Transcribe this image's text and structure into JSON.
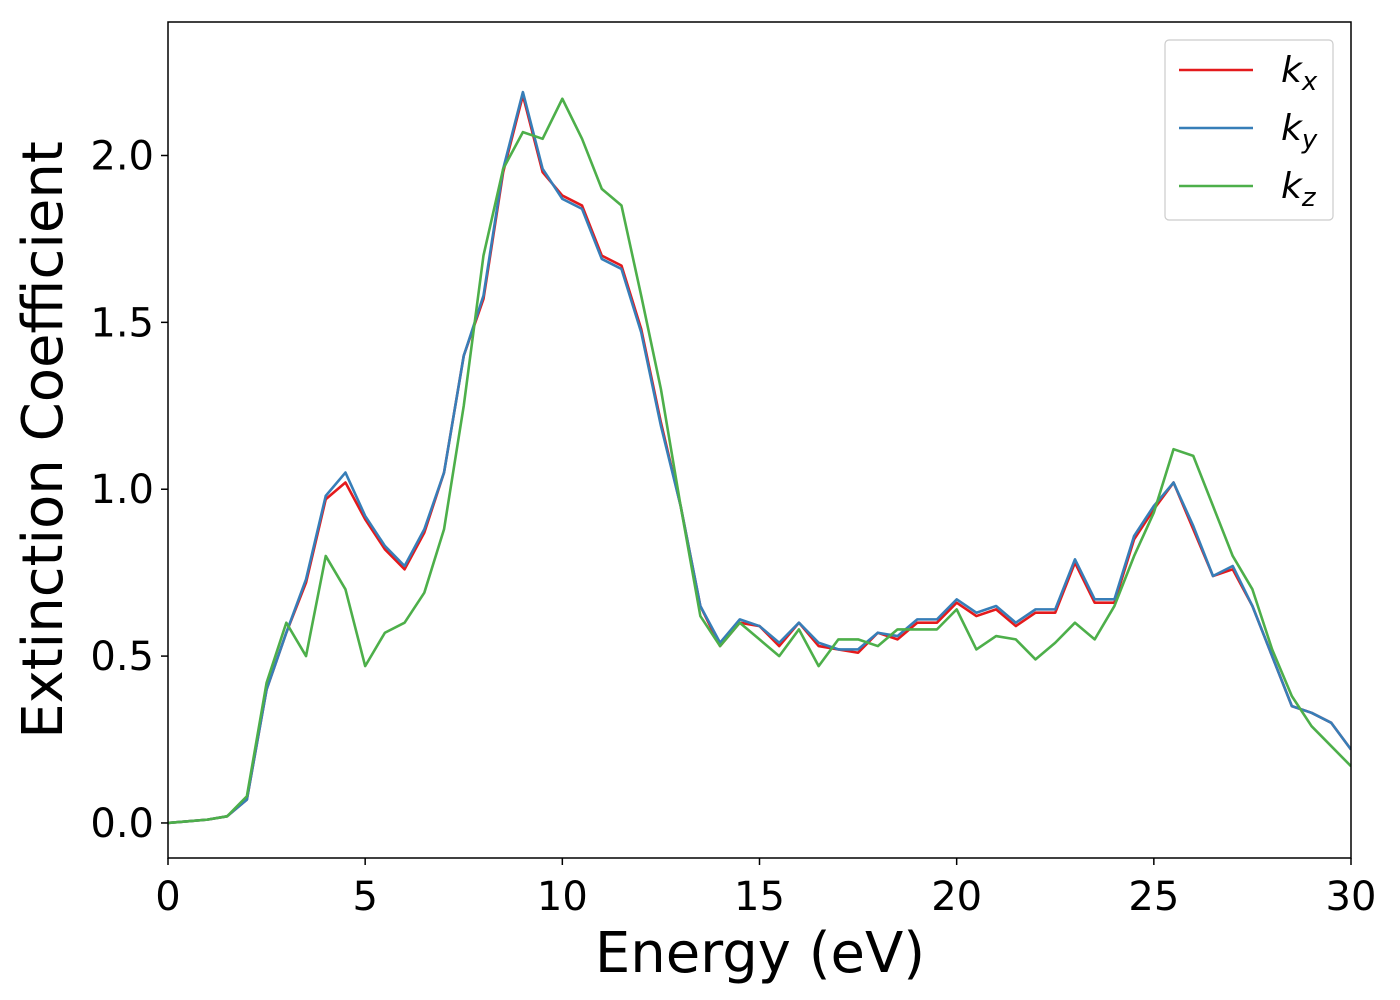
{
  "chart_data": {
    "type": "line",
    "xlabel": "Energy (eV)",
    "ylabel": "Extinction Coefficient",
    "x": [
      0,
      0.5,
      1,
      1.5,
      2,
      2.5,
      3,
      3.5,
      4,
      4.5,
      5,
      5.5,
      6,
      6.5,
      7,
      7.5,
      8,
      8.5,
      9,
      9.5,
      10,
      10.5,
      11,
      11.5,
      12,
      12.5,
      13,
      13.5,
      14,
      14.5,
      15,
      15.5,
      16,
      16.5,
      17,
      17.5,
      18,
      18.5,
      19,
      19.5,
      20,
      20.5,
      21,
      21.5,
      22,
      22.5,
      23,
      23.5,
      24,
      24.5,
      25,
      25.5,
      26,
      26.5,
      27,
      27.5,
      28,
      28.5,
      29,
      29.5,
      30
    ],
    "series": [
      {
        "name": "kx",
        "color": "#e41a1c",
        "values": [
          0,
          0.005,
          0.01,
          0.02,
          0.07,
          0.4,
          0.57,
          0.72,
          0.97,
          1.02,
          0.91,
          0.82,
          0.76,
          0.87,
          1.05,
          1.4,
          1.57,
          1.95,
          2.18,
          1.95,
          1.88,
          1.85,
          1.7,
          1.67,
          1.48,
          1.2,
          0.95,
          0.65,
          0.53,
          0.6,
          0.59,
          0.53,
          0.6,
          0.53,
          0.52,
          0.51,
          0.57,
          0.55,
          0.6,
          0.6,
          0.66,
          0.62,
          0.64,
          0.59,
          0.63,
          0.63,
          0.78,
          0.66,
          0.66,
          0.85,
          0.94,
          1.02,
          0.88,
          0.74,
          0.76,
          0.65,
          0.5,
          0.35,
          0.33,
          0.3,
          0.22
        ]
      },
      {
        "name": "ky",
        "color": "#377eb8",
        "values": [
          0,
          0.005,
          0.01,
          0.02,
          0.07,
          0.4,
          0.57,
          0.73,
          0.98,
          1.05,
          0.92,
          0.83,
          0.77,
          0.88,
          1.05,
          1.4,
          1.58,
          1.96,
          2.19,
          1.96,
          1.87,
          1.84,
          1.69,
          1.66,
          1.47,
          1.19,
          0.95,
          0.65,
          0.54,
          0.61,
          0.59,
          0.54,
          0.6,
          0.54,
          0.52,
          0.52,
          0.57,
          0.56,
          0.61,
          0.61,
          0.67,
          0.63,
          0.65,
          0.6,
          0.64,
          0.64,
          0.79,
          0.67,
          0.67,
          0.86,
          0.95,
          1.02,
          0.89,
          0.74,
          0.77,
          0.65,
          0.5,
          0.35,
          0.33,
          0.3,
          0.22
        ]
      },
      {
        "name": "kz",
        "color": "#4daf4a",
        "values": [
          0,
          0.005,
          0.01,
          0.02,
          0.08,
          0.42,
          0.6,
          0.5,
          0.8,
          0.7,
          0.47,
          0.57,
          0.6,
          0.69,
          0.88,
          1.25,
          1.7,
          1.96,
          2.07,
          2.05,
          2.17,
          2.05,
          1.9,
          1.85,
          1.58,
          1.3,
          0.95,
          0.62,
          0.53,
          0.6,
          0.55,
          0.5,
          0.58,
          0.47,
          0.55,
          0.55,
          0.53,
          0.58,
          0.58,
          0.58,
          0.64,
          0.52,
          0.56,
          0.55,
          0.49,
          0.54,
          0.6,
          0.55,
          0.65,
          0.8,
          0.93,
          1.12,
          1.1,
          0.95,
          0.8,
          0.7,
          0.52,
          0.38,
          0.29,
          0.23,
          0.17
        ]
      }
    ],
    "xlim": [
      0,
      30
    ],
    "xticks": [
      0,
      5,
      10,
      15,
      20,
      25,
      30
    ],
    "ylim": [
      -0.105,
      2.4
    ],
    "yticks": [
      {
        "value": 0,
        "label": "0.0"
      },
      0.5,
      {
        "value": 1,
        "label": "1.0"
      },
      1.5,
      {
        "value": 2,
        "label": "2.0"
      }
    ],
    "legend": "upper right"
  }
}
